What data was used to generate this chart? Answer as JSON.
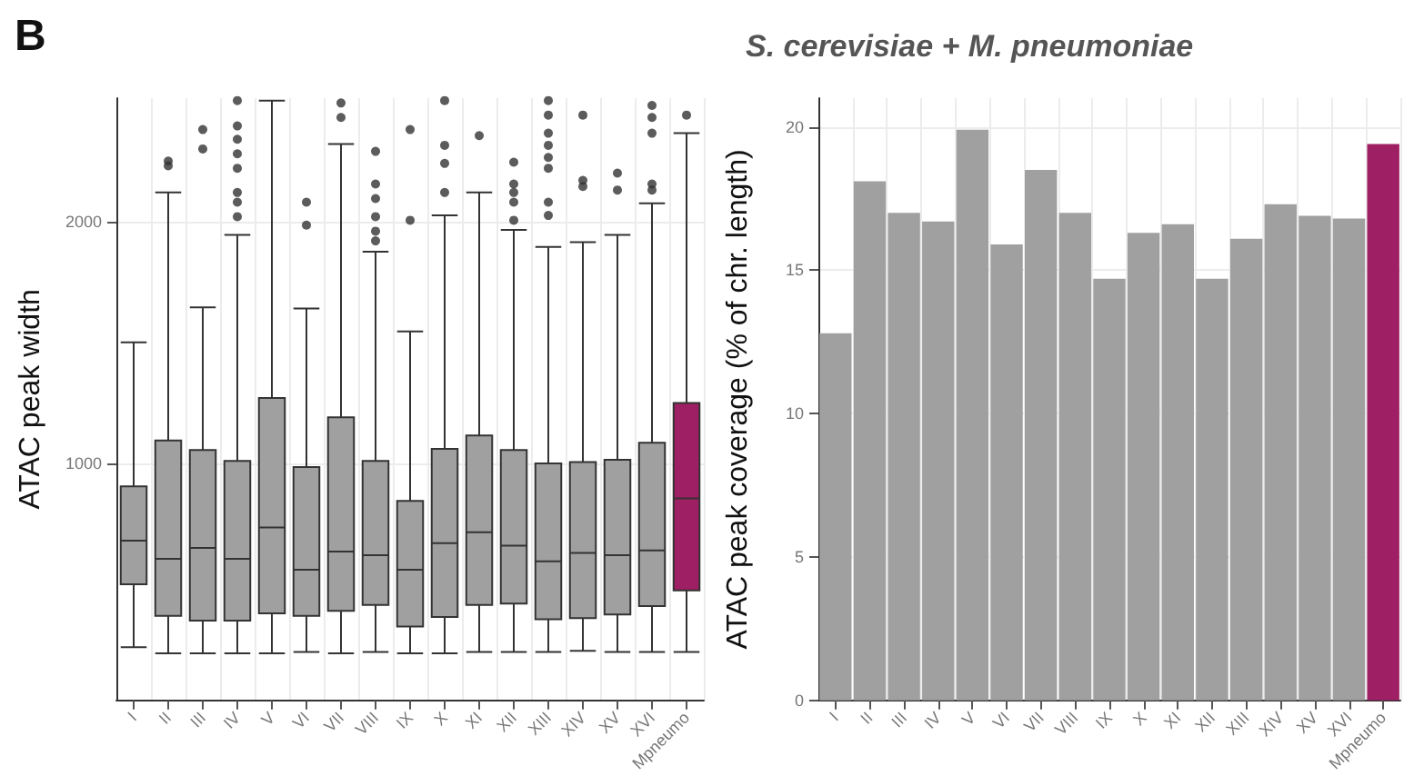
{
  "chart_data": [
    {
      "type": "box",
      "ylabel": "ATAC peak width",
      "annotations": [
        "B"
      ],
      "categories": [
        "I",
        "II",
        "III",
        "IV",
        "V",
        "VI",
        "VII",
        "VIII",
        "IX",
        "X",
        "XI",
        "XII",
        "XIII",
        "XIV",
        "XV",
        "XVI",
        "Mpneumo"
      ],
      "colors": [
        "#a0a0a0",
        "#a0a0a0",
        "#a0a0a0",
        "#a0a0a0",
        "#a0a0a0",
        "#a0a0a0",
        "#a0a0a0",
        "#a0a0a0",
        "#a0a0a0",
        "#a0a0a0",
        "#a0a0a0",
        "#a0a0a0",
        "#a0a0a0",
        "#a0a0a0",
        "#a0a0a0",
        "#a0a0a0",
        "#9e1f63"
      ],
      "boxes": [
        {
          "low": 240,
          "q1": 500,
          "median": 680,
          "q3": 905,
          "high": 1500
        },
        {
          "low": 215,
          "q1": 370,
          "median": 605,
          "q3": 1095,
          "high": 2120,
          "outliers": [
            2250,
            2230
          ]
        },
        {
          "low": 215,
          "q1": 350,
          "median": 650,
          "q3": 1055,
          "high": 1645,
          "outliers": [
            2380,
            2300
          ]
        },
        {
          "low": 215,
          "q1": 350,
          "median": 605,
          "q3": 1010,
          "high": 1945,
          "outliers": [
            2500,
            2395,
            2340,
            2280,
            2220,
            2120,
            2080,
            2020
          ]
        },
        {
          "low": 215,
          "q1": 380,
          "median": 735,
          "q3": 1270,
          "high": 2500
        },
        {
          "low": 220,
          "q1": 370,
          "median": 560,
          "q3": 985,
          "high": 1640,
          "outliers": [
            2080,
            1985
          ]
        },
        {
          "low": 215,
          "q1": 390,
          "median": 635,
          "q3": 1190,
          "high": 2320,
          "outliers": [
            2490,
            2430
          ]
        },
        {
          "low": 220,
          "q1": 415,
          "median": 620,
          "q3": 1010,
          "high": 1875,
          "outliers": [
            2290,
            2155,
            2095,
            2020,
            1960,
            1920
          ]
        },
        {
          "low": 215,
          "q1": 325,
          "median": 560,
          "q3": 845,
          "high": 1545,
          "outliers": [
            2380,
            2005
          ]
        },
        {
          "low": 215,
          "q1": 365,
          "median": 670,
          "q3": 1060,
          "high": 2025,
          "outliers": [
            2500,
            2315,
            2240,
            2120
          ]
        },
        {
          "low": 220,
          "q1": 415,
          "median": 715,
          "q3": 1115,
          "high": 2120,
          "outliers": [
            2355
          ]
        },
        {
          "low": 220,
          "q1": 420,
          "median": 660,
          "q3": 1055,
          "high": 1965,
          "outliers": [
            2245,
            2155,
            2120,
            2080,
            2005
          ]
        },
        {
          "low": 220,
          "q1": 355,
          "median": 595,
          "q3": 1000,
          "high": 1895,
          "outliers": [
            2500,
            2440,
            2365,
            2315,
            2265,
            2220,
            2080,
            2025
          ]
        },
        {
          "low": 225,
          "q1": 360,
          "median": 630,
          "q3": 1005,
          "high": 1915,
          "outliers": [
            2440,
            2170,
            2145
          ]
        },
        {
          "low": 220,
          "q1": 375,
          "median": 620,
          "q3": 1015,
          "high": 1945,
          "outliers": [
            2200,
            2130
          ]
        },
        {
          "low": 220,
          "q1": 410,
          "median": 640,
          "q3": 1085,
          "high": 2075,
          "outliers": [
            2480,
            2430,
            2365,
            2155,
            2130
          ]
        },
        {
          "low": 220,
          "q1": 475,
          "median": 855,
          "q3": 1250,
          "high": 2365,
          "outliers": [
            2440
          ]
        }
      ],
      "ylim": [
        20,
        2510
      ],
      "yticks": [
        1000,
        2000
      ],
      "grid": true
    },
    {
      "type": "bar",
      "title": "S. cerevisiae + M. pneumoniae",
      "ylabel": "ATAC peak coverage (% of chr. length)",
      "categories": [
        "I",
        "II",
        "III",
        "IV",
        "V",
        "VI",
        "VII",
        "VIII",
        "IX",
        "X",
        "XI",
        "XII",
        "XIII",
        "XIV",
        "XV",
        "XVI",
        "Mpneumo"
      ],
      "values": [
        12.8,
        18.1,
        17.0,
        16.7,
        19.9,
        15.9,
        18.5,
        17.0,
        14.7,
        16.3,
        16.6,
        14.7,
        16.1,
        17.3,
        16.9,
        16.8,
        19.4
      ],
      "colors": [
        "#a0a0a0",
        "#a0a0a0",
        "#a0a0a0",
        "#a0a0a0",
        "#a0a0a0",
        "#a0a0a0",
        "#a0a0a0",
        "#a0a0a0",
        "#a0a0a0",
        "#a0a0a0",
        "#a0a0a0",
        "#a0a0a0",
        "#a0a0a0",
        "#a0a0a0",
        "#a0a0a0",
        "#a0a0a0",
        "#9e1f63"
      ],
      "ylim": [
        0,
        21
      ],
      "yticks": [
        0,
        5,
        10,
        15,
        20
      ],
      "grid": true
    }
  ]
}
